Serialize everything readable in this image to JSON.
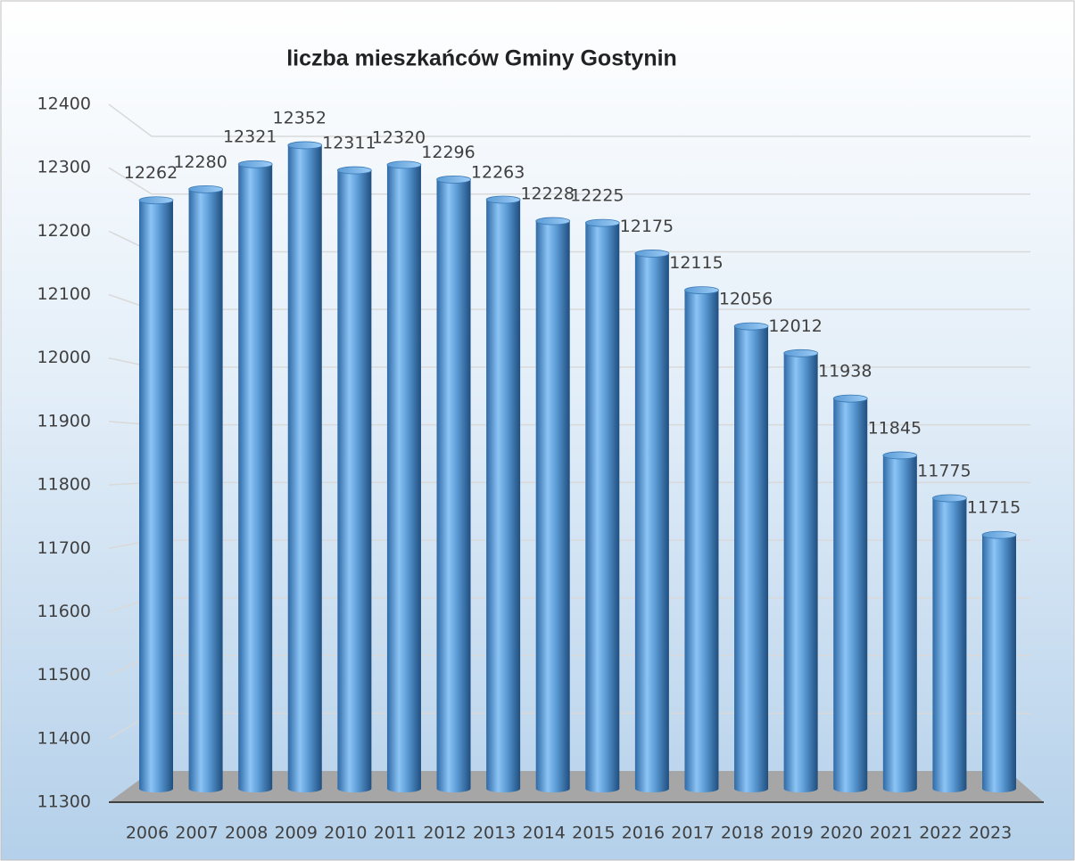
{
  "chart_data": {
    "type": "bar",
    "title": "liczba mieszkańców Gminy Gostynin",
    "categories": [
      "2006",
      "2007",
      "2008",
      "2009",
      "2010",
      "2011",
      "2012",
      "2013",
      "2014",
      "2015",
      "2016",
      "2017",
      "2018",
      "2019",
      "2020",
      "2021",
      "2022",
      "2023"
    ],
    "values": [
      12262,
      12280,
      12321,
      12352,
      12311,
      12320,
      12296,
      12263,
      12228,
      12225,
      12175,
      12115,
      12056,
      12012,
      11938,
      11845,
      11775,
      11715
    ],
    "color": "#5b9bd5",
    "ylim": [
      11300,
      12400
    ],
    "yticks": [
      11300,
      11400,
      11500,
      11600,
      11700,
      11800,
      11900,
      12000,
      12100,
      12200,
      12300,
      12400
    ],
    "grid": true
  }
}
